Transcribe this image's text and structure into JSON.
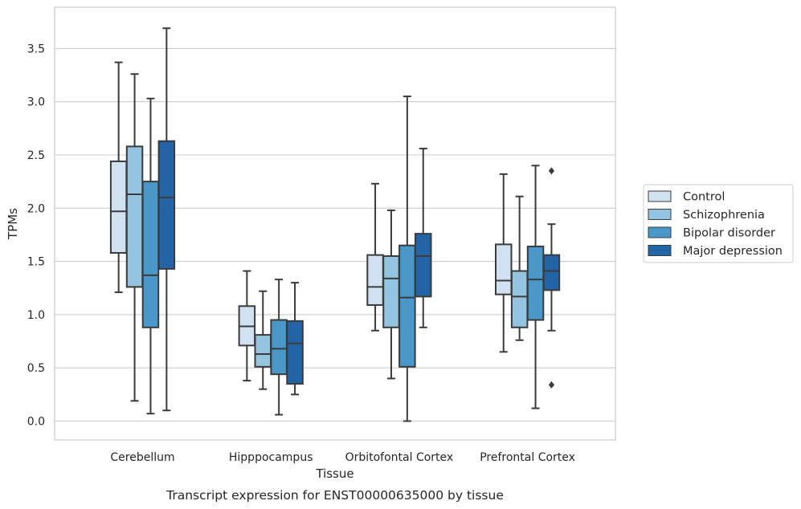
{
  "chart_data": {
    "type": "box",
    "caption": "Transcript expression for ENST00000635000 by tissue",
    "xlabel": "Tissue",
    "ylabel": "TPMs",
    "ylim": [
      -0.18,
      3.88
    ],
    "yticks": [
      0.0,
      0.5,
      1.0,
      1.5,
      2.0,
      2.5,
      3.0,
      3.5
    ],
    "ytick_labels": [
      "0.0",
      "0.5",
      "1.0",
      "1.5",
      "2.0",
      "2.5",
      "3.0",
      "3.5"
    ],
    "grid": "horizontal",
    "legend_position": "right",
    "categories": [
      "Cerebellum",
      "Hipppocampus",
      "Orbitofontal Cortex",
      "Prefrontal Cortex"
    ],
    "series": [
      {
        "name": "Control",
        "color": "#d0e1f2",
        "boxes": [
          {
            "min": 1.21,
            "q1": 1.58,
            "median": 1.97,
            "q3": 2.44,
            "max": 3.37,
            "outliers": []
          },
          {
            "min": 0.38,
            "q1": 0.71,
            "median": 0.89,
            "q3": 1.08,
            "max": 1.41,
            "outliers": []
          },
          {
            "min": 0.85,
            "q1": 1.09,
            "median": 1.26,
            "q3": 1.56,
            "max": 2.23,
            "outliers": []
          },
          {
            "min": 0.65,
            "q1": 1.19,
            "median": 1.32,
            "q3": 1.66,
            "max": 2.32,
            "outliers": []
          }
        ]
      },
      {
        "name": "Schizophrenia",
        "color": "#94c4df",
        "boxes": [
          {
            "min": 0.19,
            "q1": 1.26,
            "median": 2.13,
            "q3": 2.58,
            "max": 3.26,
            "outliers": []
          },
          {
            "min": 0.3,
            "q1": 0.51,
            "median": 0.63,
            "q3": 0.81,
            "max": 1.22,
            "outliers": []
          },
          {
            "min": 0.4,
            "q1": 0.88,
            "median": 1.34,
            "q3": 1.55,
            "max": 1.98,
            "outliers": []
          },
          {
            "min": 0.76,
            "q1": 0.88,
            "median": 1.17,
            "q3": 1.41,
            "max": 2.11,
            "outliers": []
          }
        ]
      },
      {
        "name": "Bipolar disorder",
        "color": "#4a98c9",
        "boxes": [
          {
            "min": 0.07,
            "q1": 0.88,
            "median": 1.37,
            "q3": 2.25,
            "max": 3.03,
            "outliers": []
          },
          {
            "min": 0.06,
            "q1": 0.44,
            "median": 0.68,
            "q3": 0.95,
            "max": 1.33,
            "outliers": []
          },
          {
            "min": 0.0,
            "q1": 0.51,
            "median": 1.16,
            "q3": 1.65,
            "max": 3.05,
            "outliers": []
          },
          {
            "min": 0.12,
            "q1": 0.95,
            "median": 1.33,
            "q3": 1.64,
            "max": 2.4,
            "outliers": []
          }
        ]
      },
      {
        "name": "Major depression",
        "color": "#2264a5",
        "boxes": [
          {
            "min": 0.1,
            "q1": 1.43,
            "median": 2.1,
            "q3": 2.63,
            "max": 3.69,
            "outliers": []
          },
          {
            "min": 0.25,
            "q1": 0.35,
            "median": 0.73,
            "q3": 0.94,
            "max": 1.3,
            "outliers": []
          },
          {
            "min": 0.88,
            "q1": 1.17,
            "median": 1.55,
            "q3": 1.76,
            "max": 2.56,
            "outliers": []
          },
          {
            "min": 0.85,
            "q1": 1.23,
            "median": 1.41,
            "q3": 1.56,
            "max": 1.85,
            "outliers": [
              2.35,
              0.34
            ]
          }
        ]
      }
    ]
  }
}
